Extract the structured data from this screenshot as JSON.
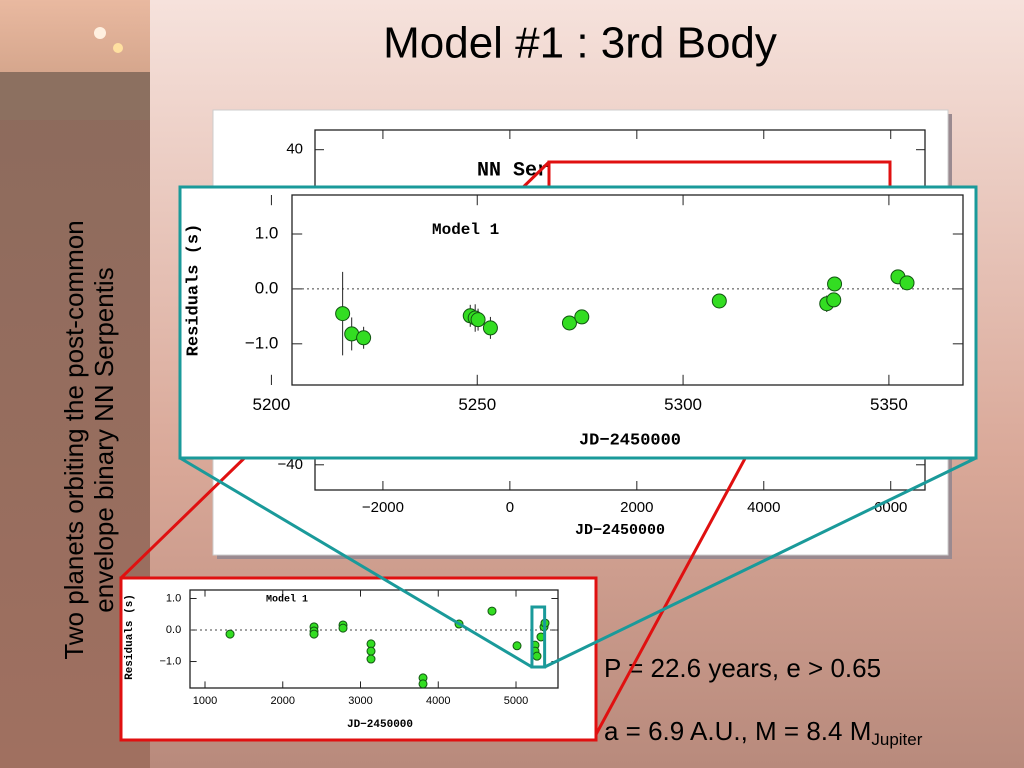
{
  "slide": {
    "title": "Model #1 : 3rd Body",
    "side_text": [
      "Two planets orbiting the post-common",
      "envelope binary NN Serpentis"
    ],
    "notes": [
      "P = 22.6 years, e > 0.65",
      "a = 6.9 A.U., M = 8.4 M"
    ],
    "note_subscript": "Jupiter"
  },
  "chart_data": [
    {
      "type": "scatter",
      "annotation": "NN Ser",
      "xlabel": "JD−2450000",
      "xlim": [
        -3070,
        6540
      ],
      "ylim": [
        -46.4,
        45
      ],
      "xticks": [
        {
          "value": -2000,
          "label": "−2000"
        },
        0,
        2000,
        4000,
        6000
      ],
      "yticks": [
        40,
        {
          "value": -40,
          "label": "−40"
        }
      ]
    },
    {
      "type": "scatter",
      "title": "Model 1",
      "xlabel": "JD−2450000",
      "ylabel": "Residuals (s)",
      "color": "#33dd22",
      "xlim": [
        5205,
        5368
      ],
      "ylim": [
        -1.75,
        1.71
      ],
      "xticks": [
        5200,
        5250,
        5300,
        5350
      ],
      "yticks": [
        {
          "value": 1,
          "label": "1.0"
        },
        {
          "value": 0,
          "label": "0.0"
        },
        {
          "value": -1,
          "label": "−1.0"
        }
      ],
      "x": [
        5217.3,
        5219.5,
        5222.4,
        5248.3,
        5249.5,
        5250.2,
        5253.2,
        5272.4,
        5275.4,
        5308.8,
        5334.9,
        5336.6,
        5336.8,
        5352.2,
        5354.4
      ],
      "values": [
        -0.45,
        -0.82,
        -0.89,
        -0.49,
        -0.53,
        -0.56,
        -0.71,
        -0.62,
        -0.51,
        -0.22,
        -0.27,
        -0.2,
        0.09,
        0.22,
        0.11
      ],
      "errors": [
        0.76,
        0.3,
        0.2,
        0.2,
        0.25,
        0.2,
        0.2,
        0.1,
        0.1,
        0.1,
        0.15,
        0.1,
        0.1,
        0.1,
        0.1
      ]
    },
    {
      "type": "scatter",
      "title": "Model 1",
      "xlabel": "JD−2450000",
      "ylabel": "Residuals (s)",
      "color": "#33dd22",
      "xlim": [
        807,
        5540
      ],
      "ylim": [
        -1.84,
        1.27
      ],
      "xticks": [
        1000,
        2000,
        3000,
        4000,
        5000
      ],
      "yticks": [
        {
          "value": 1,
          "label": "1.0"
        },
        {
          "value": 0,
          "label": "0.0"
        },
        {
          "value": -1,
          "label": "−1.0"
        }
      ],
      "x": [
        1322,
        2402,
        2402,
        2402,
        2775,
        2775,
        3135,
        3135,
        3135,
        3804,
        3804,
        4267,
        4691,
        5013,
        5244,
        5244,
        5270,
        5321,
        5360,
        5373
      ],
      "values": [
        -0.13,
        0.1,
        -0.03,
        -0.13,
        0.16,
        0.06,
        -0.44,
        -0.67,
        -0.92,
        -1.52,
        -1.71,
        0.19,
        0.6,
        -0.5,
        -0.48,
        -0.67,
        -0.83,
        -0.22,
        0.1,
        0.22
      ]
    }
  ]
}
